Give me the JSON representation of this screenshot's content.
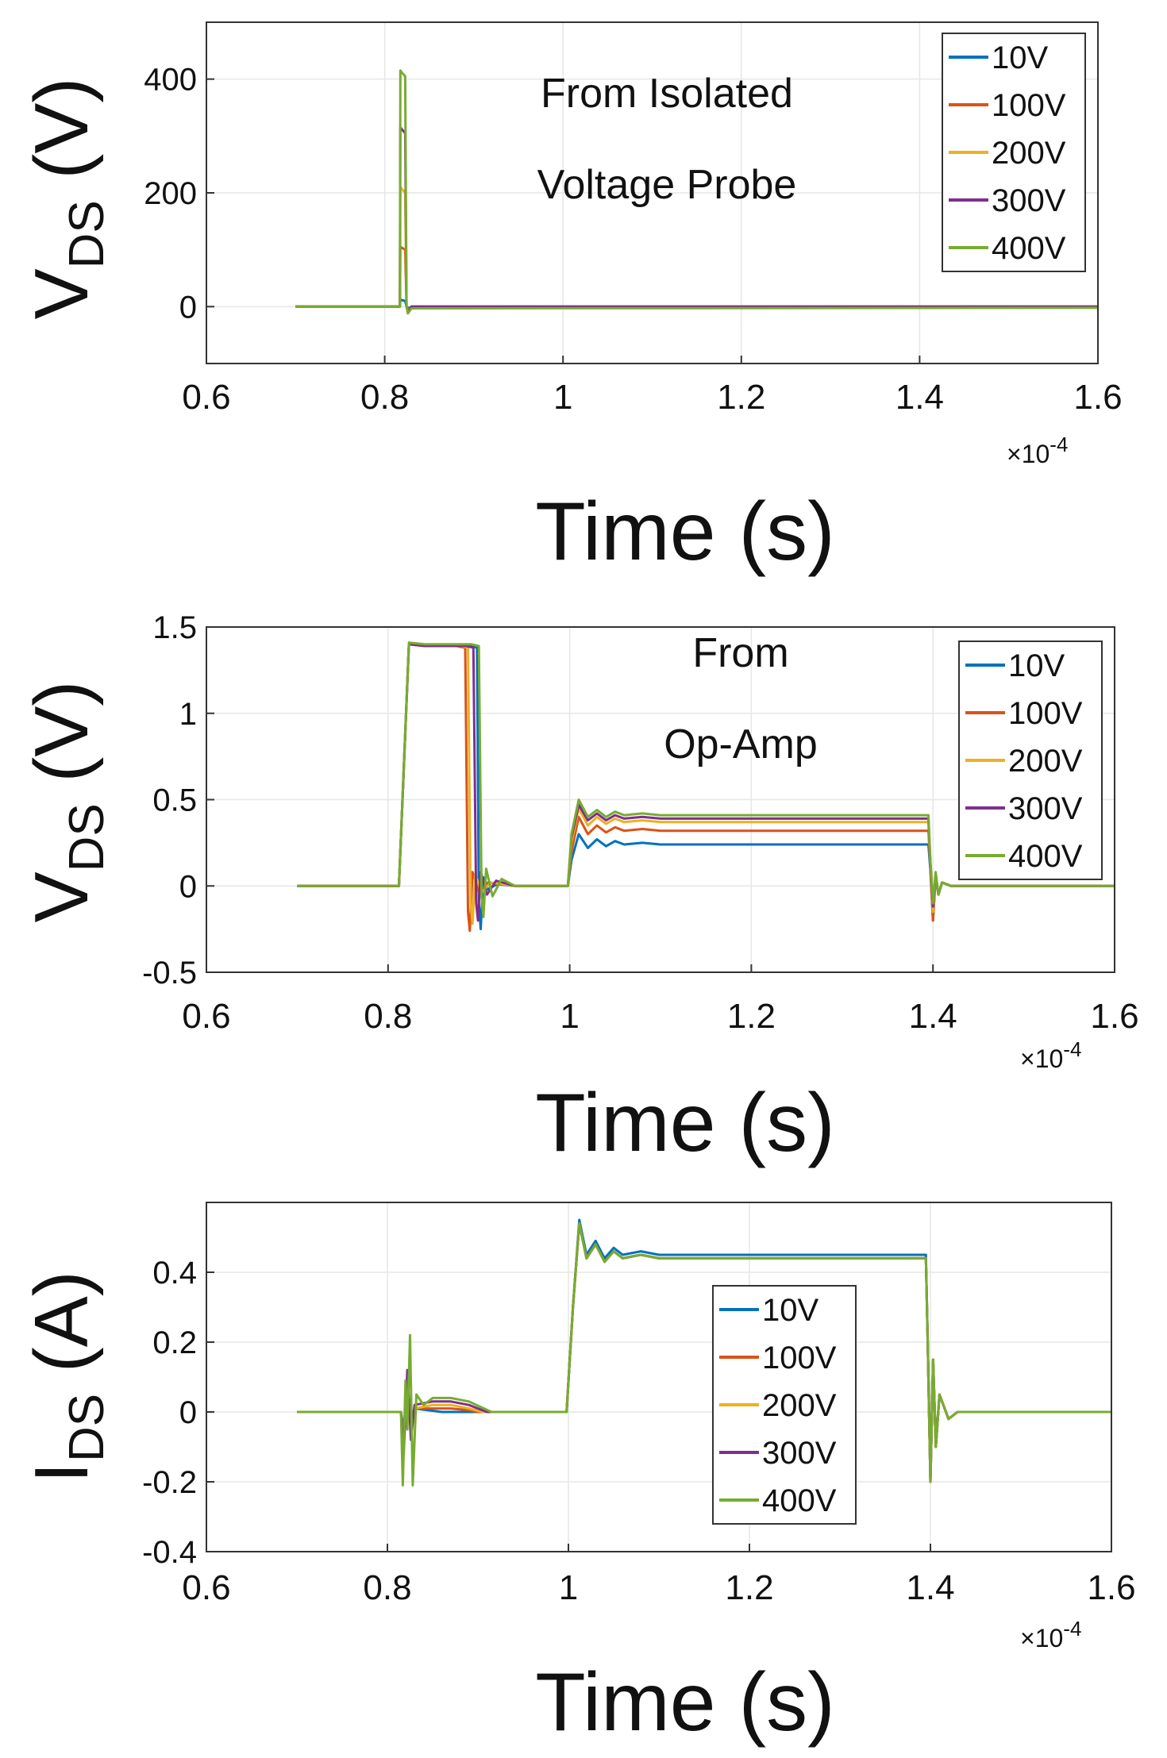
{
  "figure": {
    "colors": {
      "10V": "#0072BD",
      "100V": "#D95319",
      "200V": "#EDB120",
      "300V": "#7E2F8E",
      "400V": "#77AC30"
    }
  },
  "chart_data": [
    {
      "type": "line",
      "title": "",
      "annotation_lines": [
        "From Isolated",
        "Voltage Probe"
      ],
      "ylabel_main": "V",
      "ylabel_sub": "DS",
      "ylabel_unit": "(V)",
      "xlabel": "Time (s)",
      "x_multiplier": "×10",
      "x_multiplier_exp": "-4",
      "xlim": [
        0.6,
        1.6
      ],
      "ylim": [
        -100,
        500
      ],
      "xticks": [
        0.6,
        0.8,
        1.0,
        1.2,
        1.4,
        1.6
      ],
      "xtick_labels": [
        "0.6",
        "0.8",
        "1",
        "1.2",
        "1.4",
        "1.6"
      ],
      "yticks": [
        0,
        200,
        400
      ],
      "ytick_labels": [
        "0",
        "200",
        "400"
      ],
      "legend": [
        "10V",
        "100V",
        "200V",
        "300V",
        "400V"
      ],
      "legend_position": "top-right",
      "grid": true,
      "series": [
        {
          "name": "10V",
          "x": [
            0.7,
            0.817,
            0.8175,
            0.823,
            0.8245,
            0.827,
            0.83,
            1.6
          ],
          "y": [
            0,
            0,
            12,
            10,
            0,
            -3,
            0,
            0
          ]
        },
        {
          "name": "100V",
          "x": [
            0.7,
            0.817,
            0.8175,
            0.823,
            0.8245,
            0.826,
            0.83,
            1.6
          ],
          "y": [
            0,
            0,
            105,
            100,
            0,
            -8,
            0,
            0
          ]
        },
        {
          "name": "200V",
          "x": [
            0.7,
            0.817,
            0.8175,
            0.823,
            0.8245,
            0.826,
            0.83,
            1.6
          ],
          "y": [
            0,
            0,
            210,
            200,
            0,
            -8,
            0,
            0
          ]
        },
        {
          "name": "300V",
          "x": [
            0.7,
            0.817,
            0.8175,
            0.823,
            0.8245,
            0.826,
            0.83,
            1.6
          ],
          "y": [
            0,
            0,
            315,
            305,
            0,
            -10,
            0,
            0
          ]
        },
        {
          "name": "400V",
          "x": [
            0.7,
            0.817,
            0.8175,
            0.819,
            0.823,
            0.8245,
            0.826,
            0.83,
            1.6
          ],
          "y": [
            0,
            0,
            415,
            412,
            405,
            0,
            -12,
            -3,
            -2
          ]
        }
      ]
    },
    {
      "type": "line",
      "title": "",
      "annotation_lines": [
        "From",
        "Op-Amp"
      ],
      "ylabel_main": "V",
      "ylabel_sub": "DS",
      "ylabel_unit": "(V)",
      "xlabel": "Time (s)",
      "x_multiplier": "×10",
      "x_multiplier_exp": "-4",
      "xlim": [
        0.6,
        1.6
      ],
      "ylim": [
        -0.5,
        1.5
      ],
      "xticks": [
        0.6,
        0.8,
        1.0,
        1.2,
        1.4,
        1.6
      ],
      "xtick_labels": [
        "0.6",
        "0.8",
        "1",
        "1.2",
        "1.4",
        "1.6"
      ],
      "yticks": [
        -0.5,
        0,
        0.5,
        1,
        1.5
      ],
      "ytick_labels": [
        "-0.5",
        "0",
        "0.5",
        "1",
        "1.5"
      ],
      "legend": [
        "10V",
        "100V",
        "200V",
        "300V",
        "400V"
      ],
      "legend_position": "top-right",
      "grid": true,
      "series": [
        {
          "name": "10V",
          "x": [
            0.7,
            0.812,
            0.823,
            0.84,
            0.89,
            0.898,
            0.9,
            0.902,
            0.905,
            0.91,
            0.92,
            0.94,
            0.998,
            1.002,
            1.01,
            1.02,
            1.03,
            1.04,
            1.05,
            1.06,
            1.08,
            1.1,
            1.395,
            1.397,
            1.4,
            1.403,
            1.406,
            1.41,
            1.42,
            1.45,
            1.6
          ],
          "y": [
            0,
            0,
            1.4,
            1.39,
            1.39,
            1.38,
            -0.1,
            -0.25,
            0.05,
            -0.02,
            0.01,
            0,
            0,
            0.15,
            0.3,
            0.22,
            0.27,
            0.23,
            0.26,
            0.24,
            0.25,
            0.24,
            0.24,
            0.1,
            -0.2,
            0.05,
            -0.05,
            0.02,
            0,
            0,
            0
          ]
        },
        {
          "name": "100V",
          "x": [
            0.7,
            0.812,
            0.823,
            0.84,
            0.875,
            0.885,
            0.888,
            0.89,
            0.893,
            0.9,
            0.91,
            0.94,
            0.998,
            1.002,
            1.01,
            1.02,
            1.03,
            1.04,
            1.05,
            1.06,
            1.08,
            1.1,
            1.395,
            1.397,
            1.4,
            1.403,
            1.406,
            1.41,
            1.42,
            1.45,
            1.6
          ],
          "y": [
            0,
            0,
            1.4,
            1.39,
            1.39,
            1.38,
            -0.15,
            -0.26,
            0.08,
            -0.04,
            0.02,
            0,
            0,
            0.2,
            0.4,
            0.3,
            0.35,
            0.31,
            0.34,
            0.32,
            0.33,
            0.32,
            0.32,
            0.12,
            -0.2,
            0.06,
            -0.05,
            0.02,
            0,
            0,
            0
          ]
        },
        {
          "name": "200V",
          "x": [
            0.7,
            0.812,
            0.823,
            0.84,
            0.88,
            0.888,
            0.891,
            0.893,
            0.896,
            0.903,
            0.913,
            0.94,
            0.998,
            1.002,
            1.01,
            1.02,
            1.03,
            1.04,
            1.05,
            1.06,
            1.08,
            1.1,
            1.395,
            1.397,
            1.4,
            1.403,
            1.406,
            1.41,
            1.42,
            1.45,
            1.6
          ],
          "y": [
            0,
            0,
            1.4,
            1.39,
            1.39,
            1.38,
            -0.1,
            -0.22,
            0.07,
            -0.04,
            0.02,
            0,
            0,
            0.25,
            0.45,
            0.35,
            0.4,
            0.36,
            0.39,
            0.37,
            0.38,
            0.37,
            0.37,
            0.14,
            -0.15,
            0.06,
            -0.05,
            0.02,
            0,
            0,
            0
          ]
        },
        {
          "name": "300V",
          "x": [
            0.7,
            0.812,
            0.823,
            0.84,
            0.886,
            0.894,
            0.897,
            0.899,
            0.902,
            0.909,
            0.919,
            0.94,
            0.998,
            1.002,
            1.01,
            1.02,
            1.03,
            1.04,
            1.05,
            1.06,
            1.08,
            1.1,
            1.395,
            1.397,
            1.4,
            1.403,
            1.406,
            1.41,
            1.42,
            1.45,
            1.6
          ],
          "y": [
            0,
            0,
            1.4,
            1.39,
            1.39,
            1.38,
            -0.1,
            -0.2,
            0.08,
            -0.05,
            0.03,
            0,
            0,
            0.28,
            0.47,
            0.38,
            0.42,
            0.38,
            0.41,
            0.39,
            0.4,
            0.39,
            0.39,
            0.15,
            -0.12,
            0.07,
            -0.05,
            0.02,
            0,
            0,
            0
          ]
        },
        {
          "name": "400V",
          "x": [
            0.7,
            0.812,
            0.823,
            0.84,
            0.892,
            0.9,
            0.903,
            0.905,
            0.908,
            0.915,
            0.925,
            0.94,
            0.998,
            1.002,
            1.01,
            1.02,
            1.03,
            1.04,
            1.05,
            1.06,
            1.08,
            1.1,
            1.395,
            1.397,
            1.4,
            1.403,
            1.406,
            1.41,
            1.42,
            1.45,
            1.6
          ],
          "y": [
            0,
            0,
            1.41,
            1.4,
            1.4,
            1.39,
            -0.05,
            -0.18,
            0.1,
            -0.06,
            0.04,
            0,
            0,
            0.3,
            0.5,
            0.4,
            0.44,
            0.4,
            0.43,
            0.41,
            0.42,
            0.41,
            0.41,
            0.16,
            -0.1,
            0.08,
            -0.05,
            0.02,
            0,
            0,
            0
          ]
        }
      ]
    },
    {
      "type": "line",
      "title": "",
      "annotation_lines": [],
      "ylabel_main": "I",
      "ylabel_sub": "DS",
      "ylabel_unit": "(A)",
      "xlabel": "Time (s)",
      "x_multiplier": "×10",
      "x_multiplier_exp": "-4",
      "xlim": [
        0.6,
        1.6
      ],
      "ylim": [
        -0.4,
        0.6
      ],
      "xticks": [
        0.6,
        0.8,
        1.0,
        1.2,
        1.4,
        1.6
      ],
      "xtick_labels": [
        "0.6",
        "0.8",
        "1",
        "1.2",
        "1.4",
        "1.6"
      ],
      "yticks": [
        -0.4,
        -0.2,
        0,
        0.2,
        0.4
      ],
      "ytick_labels": [
        "-0.4",
        "-0.2",
        "0",
        "0.2",
        "0.4"
      ],
      "legend": [
        "10V",
        "100V",
        "200V",
        "300V",
        "400V"
      ],
      "legend_position": "center",
      "grid": true,
      "series": [
        {
          "name": "10V",
          "x": [
            0.7,
            0.815,
            0.818,
            0.822,
            0.826,
            0.83,
            0.86,
            0.89,
            0.998,
            1.005,
            1.012,
            1.02,
            1.03,
            1.04,
            1.05,
            1.06,
            1.08,
            1.1,
            1.395,
            1.397,
            1.4,
            1.403,
            1.406,
            1.41,
            1.42,
            1.43,
            1.45,
            1.6
          ],
          "y": [
            0,
            0,
            -0.05,
            0.04,
            -0.02,
            0.01,
            0,
            0,
            0,
            0.3,
            0.55,
            0.45,
            0.49,
            0.44,
            0.47,
            0.45,
            0.46,
            0.45,
            0.45,
            0.2,
            -0.2,
            0.15,
            -0.1,
            0.05,
            -0.02,
            0,
            0,
            0
          ]
        },
        {
          "name": "100V",
          "x": [
            0.7,
            0.815,
            0.818,
            0.822,
            0.826,
            0.83,
            0.85,
            0.87,
            0.89,
            0.9,
            0.998,
            1.005,
            1.012,
            1.02,
            1.03,
            1.04,
            1.05,
            1.06,
            1.08,
            1.1,
            1.395,
            1.397,
            1.4,
            1.403,
            1.406,
            1.41,
            1.42,
            1.43,
            1.45,
            1.6
          ],
          "y": [
            0,
            0,
            -0.08,
            0.06,
            -0.03,
            0.01,
            0.01,
            0.01,
            0.005,
            0,
            0,
            0.3,
            0.54,
            0.44,
            0.48,
            0.43,
            0.46,
            0.44,
            0.45,
            0.44,
            0.44,
            0.2,
            -0.2,
            0.15,
            -0.1,
            0.05,
            -0.02,
            0,
            0,
            0
          ]
        },
        {
          "name": "200V",
          "x": [
            0.7,
            0.815,
            0.818,
            0.822,
            0.826,
            0.83,
            0.85,
            0.87,
            0.89,
            0.905,
            0.998,
            1.005,
            1.012,
            1.02,
            1.03,
            1.04,
            1.05,
            1.06,
            1.08,
            1.1,
            1.395,
            1.397,
            1.4,
            1.403,
            1.406,
            1.41,
            1.42,
            1.43,
            1.45,
            1.6
          ],
          "y": [
            0,
            0,
            -0.1,
            0.08,
            -0.04,
            0.01,
            0.02,
            0.02,
            0.01,
            0,
            0,
            0.3,
            0.54,
            0.44,
            0.48,
            0.43,
            0.46,
            0.44,
            0.45,
            0.44,
            0.44,
            0.2,
            -0.2,
            0.15,
            -0.1,
            0.05,
            -0.02,
            0,
            0,
            0
          ]
        },
        {
          "name": "300V",
          "x": [
            0.7,
            0.815,
            0.818,
            0.822,
            0.826,
            0.83,
            0.85,
            0.87,
            0.89,
            0.91,
            0.998,
            1.005,
            1.012,
            1.02,
            1.03,
            1.04,
            1.05,
            1.06,
            1.08,
            1.1,
            1.395,
            1.397,
            1.4,
            1.403,
            1.406,
            1.41,
            1.42,
            1.43,
            1.45,
            1.6
          ],
          "y": [
            0,
            0,
            -0.12,
            0.12,
            -0.08,
            0.02,
            0.03,
            0.03,
            0.02,
            0,
            0,
            0.3,
            0.54,
            0.44,
            0.48,
            0.43,
            0.46,
            0.44,
            0.45,
            0.44,
            0.44,
            0.2,
            -0.2,
            0.15,
            -0.1,
            0.05,
            -0.02,
            0,
            0,
            0
          ]
        },
        {
          "name": "400V",
          "x": [
            0.7,
            0.815,
            0.817,
            0.82,
            0.822,
            0.825,
            0.828,
            0.832,
            0.84,
            0.85,
            0.87,
            0.89,
            0.915,
            0.998,
            1.005,
            1.012,
            1.02,
            1.03,
            1.04,
            1.05,
            1.06,
            1.08,
            1.1,
            1.395,
            1.397,
            1.4,
            1.403,
            1.406,
            1.41,
            1.42,
            1.43,
            1.45,
            1.6
          ],
          "y": [
            0,
            0,
            -0.21,
            0.09,
            -0.05,
            0.22,
            -0.21,
            0.05,
            0.02,
            0.04,
            0.04,
            0.03,
            0,
            0,
            0.3,
            0.54,
            0.44,
            0.48,
            0.43,
            0.46,
            0.44,
            0.45,
            0.44,
            0.44,
            0.2,
            -0.2,
            0.15,
            -0.1,
            0.05,
            -0.02,
            0,
            0,
            0
          ]
        }
      ]
    }
  ]
}
